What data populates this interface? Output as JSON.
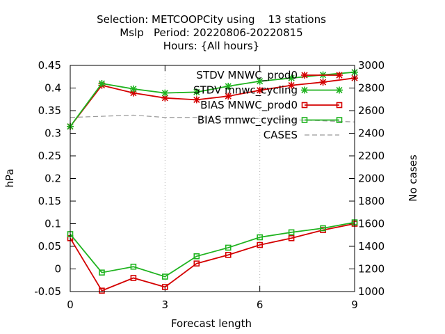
{
  "chart_data": {
    "type": "line",
    "title_lines": [
      "Selection: METCOOPCity using    13 stations",
      "Mslp   Period: 20220806-20220815",
      "Hours: {All hours}"
    ],
    "xlabel": "Forecast length",
    "ylabel": "hPa",
    "y2label": "No cases",
    "xlim": [
      0,
      9
    ],
    "ylim": [
      -0.05,
      0.45
    ],
    "y2lim": [
      1000,
      3000
    ],
    "xticks": [
      "0",
      "3",
      "6",
      "9"
    ],
    "yticks": [
      "-0.05",
      "0",
      "0.05",
      "0.1",
      "0.15",
      "0.2",
      "0.25",
      "0.3",
      "0.35",
      "0.4",
      "0.45"
    ],
    "y2ticks": [
      "1000",
      "1200",
      "1400",
      "1600",
      "1800",
      "2000",
      "2200",
      "2400",
      "2600",
      "2800",
      "3000"
    ],
    "grid": "vertical-dotted at x ticks",
    "legend_position": "top-right",
    "x": [
      0,
      1,
      2,
      3,
      4,
      5,
      6,
      7,
      8,
      9
    ],
    "series": [
      {
        "name": "STDV MNWC_prod0",
        "axis": "left",
        "marker": "star",
        "color": "#d40000",
        "values": [
          0.315,
          0.406,
          0.389,
          0.378,
          0.374,
          0.382,
          0.395,
          0.406,
          0.413,
          0.422
        ]
      },
      {
        "name": "STDV mnwc_cycling",
        "axis": "left",
        "marker": "star",
        "color": "#1fb31f",
        "values": [
          0.315,
          0.41,
          0.398,
          0.389,
          0.391,
          0.404,
          0.415,
          0.422,
          0.429,
          0.435
        ]
      },
      {
        "name": "BIAS MNWC_prod0",
        "axis": "left",
        "marker": "square",
        "color": "#d40000",
        "values": [
          0.068,
          -0.048,
          -0.02,
          -0.04,
          0.012,
          0.031,
          0.053,
          0.068,
          0.086,
          0.1
        ]
      },
      {
        "name": "BIAS mnwc_cycling",
        "axis": "left",
        "marker": "square",
        "color": "#1fb31f",
        "values": [
          0.077,
          -0.008,
          0.005,
          -0.017,
          0.028,
          0.047,
          0.07,
          0.081,
          0.09,
          0.103
        ]
      },
      {
        "name": "CASES",
        "axis": "right",
        "marker": "none",
        "color": "#999999",
        "dash": true,
        "values": [
          2540,
          2550,
          2560,
          2540,
          2540,
          2530,
          2530,
          2520,
          2510,
          2500
        ]
      }
    ]
  }
}
